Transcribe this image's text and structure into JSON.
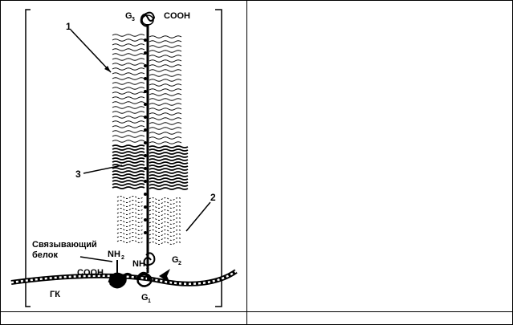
{
  "labels": {
    "n1": "1",
    "n2": "2",
    "n3": "3",
    "g3_main": "G",
    "g3_sub": "3",
    "cooh_top": "COOH",
    "binding_line1": "Связывающий",
    "binding_line2": "белок",
    "nh2_left_main": "NH",
    "nh2_left_sub": "2",
    "cooh_left": "COOH",
    "nh2_center_main": "NH",
    "nh2_center_sub": "2",
    "g2_main": "G",
    "g2_sub": "2",
    "gk": "ГК",
    "g1_main": "G",
    "g1_sub": "1"
  }
}
